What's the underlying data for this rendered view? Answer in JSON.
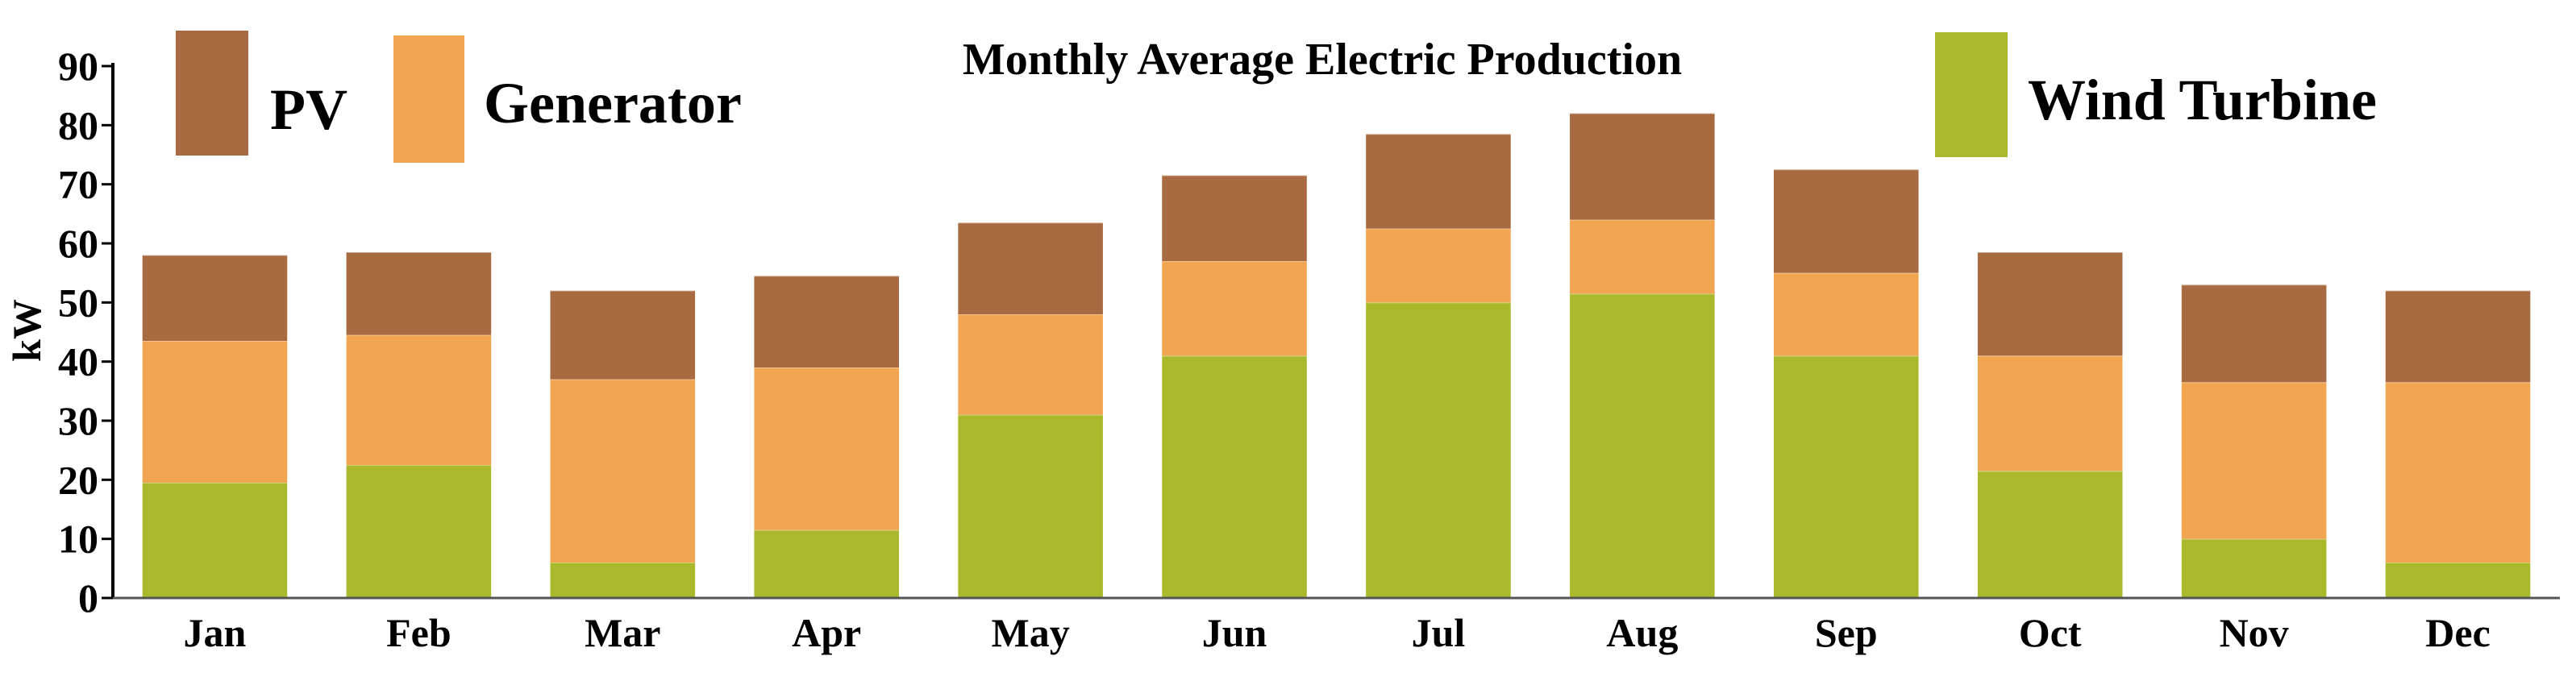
{
  "chart_data": {
    "type": "bar",
    "stacked": true,
    "title": "Monthly Average Electric Production",
    "xlabel": "",
    "ylabel": "kW",
    "ylim": [
      0,
      90
    ],
    "yticks": [
      "0",
      "10",
      "20",
      "30",
      "40",
      "50",
      "60",
      "70",
      "80",
      "90"
    ],
    "categories": [
      "Jan",
      "Feb",
      "Mar",
      "Apr",
      "May",
      "Jun",
      "Jul",
      "Aug",
      "Sep",
      "Oct",
      "Nov",
      "Dec"
    ],
    "series": [
      {
        "name": "Wind Turbine",
        "color": "#aab92c",
        "values": [
          19.5,
          22.5,
          6,
          11.5,
          31,
          41,
          50,
          51.5,
          41,
          21.5,
          10,
          6
        ]
      },
      {
        "name": "Generator",
        "color": "#f1a550",
        "values": [
          24,
          22,
          31,
          27.5,
          17,
          16,
          12.5,
          12.5,
          14,
          19.5,
          26.5,
          30.5
        ]
      },
      {
        "name": "PV",
        "color": "#a86a40",
        "values": [
          14.5,
          14,
          15,
          15.5,
          15.5,
          14.5,
          16,
          18,
          17.5,
          17.5,
          16.5,
          15.5
        ]
      }
    ],
    "legend": [
      {
        "label": "PV",
        "color": "#a86a40"
      },
      {
        "label": "Generator",
        "color": "#f1a550"
      },
      {
        "label": "Wind Turbine",
        "color": "#aab92c"
      }
    ]
  }
}
